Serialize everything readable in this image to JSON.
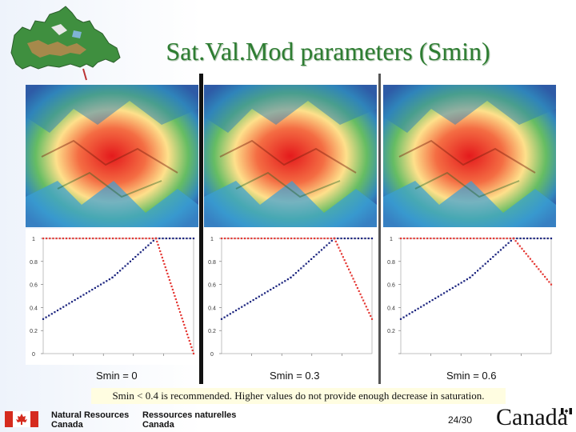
{
  "slide": {
    "title": "Sat.Val.Mod parameters (Smin)",
    "note": "Smin < 0.4 is recommended.  Higher values do not provide enough decrease in saturation.",
    "page": "24/30"
  },
  "footer": {
    "dept_en_line1": "Natural Resources",
    "dept_en_line2": "Canada",
    "dept_fr_line1": "Ressources naturelles",
    "dept_fr_line2": "Canada",
    "wordmark": "Canada"
  },
  "panels": [
    {
      "caption": "Smin = 0"
    },
    {
      "caption": "Smin = 0.3"
    },
    {
      "caption": "Smin = 0.6"
    }
  ],
  "chart_data": [
    {
      "type": "line",
      "title": "",
      "ylim": [
        0,
        1
      ],
      "yticks": [
        "0",
        "0.2",
        "0.4",
        "0.6",
        "0.8",
        "1"
      ],
      "series": [
        {
          "name": "blue",
          "color": "#1a237e",
          "points": [
            [
              0,
              0.3
            ],
            [
              0.46,
              0.66
            ],
            [
              0.75,
              1.0
            ],
            [
              1.0,
              1.0
            ]
          ]
        },
        {
          "name": "red",
          "color": "#e53935",
          "points": [
            [
              0,
              1.0
            ],
            [
              0.75,
              1.0
            ],
            [
              1.0,
              0.0
            ]
          ]
        }
      ]
    },
    {
      "type": "line",
      "title": "",
      "ylim": [
        0,
        1
      ],
      "yticks": [
        "0",
        "0.2",
        "0.4",
        "0.6",
        "0.8",
        "1"
      ],
      "series": [
        {
          "name": "blue",
          "color": "#1a237e",
          "points": [
            [
              0,
              0.3
            ],
            [
              0.46,
              0.66
            ],
            [
              0.75,
              1.0
            ],
            [
              1.0,
              1.0
            ]
          ]
        },
        {
          "name": "red",
          "color": "#e53935",
          "points": [
            [
              0,
              1.0
            ],
            [
              0.75,
              1.0
            ],
            [
              1.0,
              0.3
            ]
          ]
        }
      ]
    },
    {
      "type": "line",
      "title": "",
      "ylim": [
        0,
        1
      ],
      "yticks": [
        "",
        "0.2",
        "0.4",
        "0.6",
        "0.8",
        "1"
      ],
      "series": [
        {
          "name": "blue",
          "color": "#1a237e",
          "points": [
            [
              0,
              0.3
            ],
            [
              0.46,
              0.66
            ],
            [
              0.75,
              1.0
            ],
            [
              1.0,
              1.0
            ]
          ]
        },
        {
          "name": "red",
          "color": "#e53935",
          "points": [
            [
              0,
              1.0
            ],
            [
              0.75,
              1.0
            ],
            [
              1.0,
              0.6
            ]
          ]
        }
      ]
    }
  ]
}
